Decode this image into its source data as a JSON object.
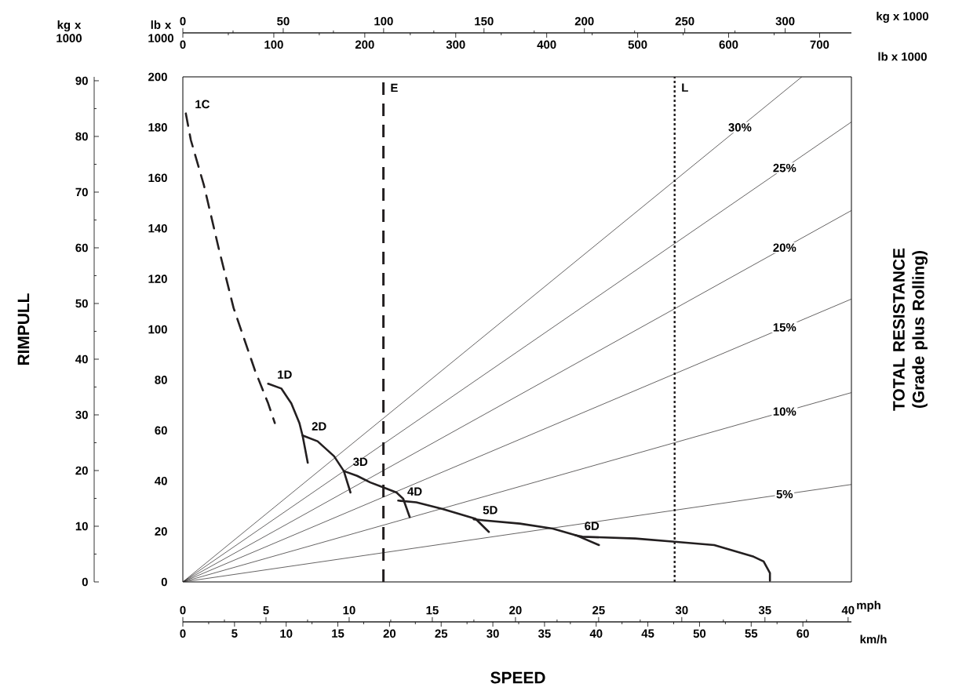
{
  "chart_data": [
    {
      "type": "line",
      "xlabel": "SPEED",
      "ylabel": "RIMPULL",
      "y2label": "TOTAL RESISTANCE (Grade plus Rolling)",
      "xlim": [
        0,
        40.2
      ],
      "xticks": [
        0,
        5,
        10,
        15,
        20,
        25,
        30,
        35,
        40
      ],
      "x2lim": [
        0,
        735
      ],
      "x2ticks": [
        0,
        100,
        200,
        300,
        400,
        500,
        600,
        700
      ],
      "x2label": "lb x 1000",
      "ylim": [
        0,
        200
      ],
      "yticks": [
        0,
        20,
        40,
        60,
        80,
        100,
        120,
        140,
        160,
        180,
        200
      ],
      "annotations": [
        "lb x 1000",
        "mph"
      ],
      "ref_lines": [
        {
          "axis": "x",
          "value": 12.06,
          "label": "E",
          "color": "#231f20",
          "line_style": "dashed"
        },
        {
          "axis": "x",
          "value": 29.57,
          "label": "L",
          "color": "#231f20",
          "line_style": "dotted"
        }
      ],
      "series": [
        {
          "name": "1C",
          "color": "#231f20",
          "line_style": "dashed",
          "x": [
            0.18,
            0.48,
            1.27,
            2.16,
            3.05,
            4.34,
            5.13,
            5.53
          ],
          "values": [
            185.5,
            175,
            157,
            132,
            108.5,
            83.7,
            70.7,
            62.9
          ]
        },
        {
          "name": "1D",
          "color": "#231f20",
          "x": [
            5.13,
            5.92,
            6.52,
            7.01,
            7.21,
            7.51
          ],
          "values": [
            78.5,
            76.6,
            70.7,
            62.9,
            57.6,
            47.2
          ]
        },
        {
          "name": "2D",
          "color": "#231f20",
          "x": [
            7.2,
            8.1,
            9.09,
            9.68,
            10.08
          ],
          "values": [
            58,
            55.7,
            49.8,
            43.9,
            35.4
          ]
        },
        {
          "name": "3D",
          "color": "#231f20",
          "x": [
            9.68,
            10.48,
            11.27,
            12.06,
            12.85,
            13.25,
            13.64
          ],
          "values": [
            43.9,
            42,
            39.4,
            37.4,
            35.4,
            32.9,
            25.7
          ]
        },
        {
          "name": "4D",
          "color": "#231f20",
          "x": [
            12.95,
            14.04,
            15.62,
            17.6,
            18.4
          ],
          "values": [
            32.2,
            31.5,
            28.9,
            25,
            19.8
          ]
        },
        {
          "name": "5D",
          "color": "#231f20",
          "x": [
            17.49,
            18.09,
            20.26,
            22.24,
            23.63,
            25.02
          ],
          "values": [
            24.8,
            24.4,
            23.1,
            21.1,
            18.5,
            14.6
          ]
        },
        {
          "name": "6D",
          "color": "#231f20",
          "x": [
            23.6,
            24.03,
            27.2,
            29.57,
            31.95,
            34.32,
            34.92,
            35.3,
            35.3
          ],
          "values": [
            18.5,
            17.9,
            17.2,
            15.9,
            14.6,
            10,
            8.1,
            3.5,
            0.5
          ]
        }
      ]
    },
    {
      "type": "line",
      "x2label": "kg x 1000",
      "xlim": [
        0,
        64.7
      ],
      "xticks": [
        0,
        5,
        10,
        15,
        20,
        25,
        30,
        35,
        40,
        45,
        50,
        55,
        60
      ],
      "x2lim": [
        0,
        333
      ],
      "x2ticks": [
        0,
        50,
        100,
        150,
        200,
        250,
        300
      ],
      "ylim": [
        0,
        90.7
      ],
      "yticks": [
        0,
        10,
        20,
        30,
        40,
        50,
        60,
        70,
        80,
        90
      ],
      "annotations": [
        "kg x 1000",
        "km/h"
      ],
      "series": [
        {
          "name": "5%",
          "color": "#231f20",
          "x": [
            0,
            64.7
          ],
          "values": [
            0,
            17.5
          ]
        },
        {
          "name": "10%",
          "color": "#231f20",
          "x": [
            0,
            64.7
          ],
          "values": [
            0,
            34
          ]
        },
        {
          "name": "15%",
          "color": "#231f20",
          "x": [
            0,
            64.7
          ],
          "values": [
            0,
            50.8
          ]
        },
        {
          "name": "20%",
          "color": "#231f20",
          "x": [
            0,
            64.7
          ],
          "values": [
            0,
            66.7
          ]
        },
        {
          "name": "25%",
          "color": "#231f20",
          "x": [
            0,
            64.7
          ],
          "values": [
            0,
            82.6
          ]
        },
        {
          "name": "30%",
          "color": "#231f20",
          "x": [
            0,
            59.9
          ],
          "values": [
            0,
            90.7
          ]
        }
      ]
    }
  ]
}
